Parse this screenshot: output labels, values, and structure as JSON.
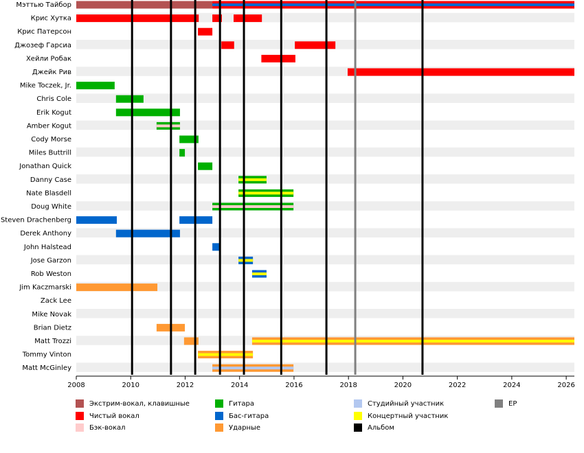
{
  "chart_data": {
    "type": "timeline",
    "xlim": [
      2008,
      2026.3
    ],
    "xticks": [
      2008,
      2010,
      2012,
      2014,
      2016,
      2018,
      2020,
      2022,
      2024,
      2026
    ],
    "series": [
      {
        "name": "Экстрим-вокал, клавишные",
        "color": "#b35252"
      },
      {
        "name": "Чистый вокал",
        "color": "#ff0000"
      },
      {
        "name": "Бэк-вокал",
        "color": "#ffcccc"
      },
      {
        "name": "Гитара",
        "color": "#00b000"
      },
      {
        "name": "Бас-гитара",
        "color": "#0066cc"
      },
      {
        "name": "Ударные",
        "color": "#ff9933"
      },
      {
        "name": "Студийный участник",
        "color": "#b3c8f0"
      },
      {
        "name": "Концертный участник",
        "color": "#ffff00"
      },
      {
        "name": "Альбом",
        "color": "#000000",
        "values": [
          2010.05,
          2011.48,
          2012.37,
          2013.28,
          2014.16,
          2015.53,
          2017.19,
          2020.72
        ]
      },
      {
        "name": "EP",
        "color": "#808080",
        "values": [
          2018.25
        ]
      }
    ],
    "members": [
      {
        "name": "Мэттью Тайбор",
        "bars": [
          {
            "start": 2008,
            "end": 2013.0,
            "role": 0
          },
          {
            "start": 2013.0,
            "end": 2026.3,
            "role": 1,
            "stripe": 4
          }
        ]
      },
      {
        "name": "Крис Хутка",
        "bars": [
          {
            "start": 2008,
            "end": 2012.5,
            "role": 1
          },
          {
            "start": 2013.0,
            "end": 2013.35,
            "role": 1
          },
          {
            "start": 2013.78,
            "end": 2014.82,
            "role": 1
          }
        ]
      },
      {
        "name": "Крис Патерсон",
        "bars": [
          {
            "start": 2012.47,
            "end": 2013.0,
            "role": 1
          }
        ]
      },
      {
        "name": "Джозеф Гарсиа",
        "bars": [
          {
            "start": 2013.33,
            "end": 2013.8,
            "role": 1
          },
          {
            "start": 2016.03,
            "end": 2017.52,
            "role": 1
          }
        ]
      },
      {
        "name": "Хейли Робак",
        "bars": [
          {
            "start": 2014.8,
            "end": 2016.05,
            "role": 1
          }
        ]
      },
      {
        "name": "Джейк Рив",
        "bars": [
          {
            "start": 2017.97,
            "end": 2026.3,
            "role": 1
          }
        ]
      },
      {
        "name": "Mike Toczek, Jr.",
        "bars": [
          {
            "start": 2008,
            "end": 2009.41,
            "role": 3
          }
        ]
      },
      {
        "name": "Chris Cole",
        "bars": [
          {
            "start": 2009.46,
            "end": 2010.47,
            "role": 3
          }
        ]
      },
      {
        "name": "Erik Kogut",
        "bars": [
          {
            "start": 2009.46,
            "end": 2011.81,
            "role": 3
          }
        ]
      },
      {
        "name": "Amber Kogut",
        "bars": [
          {
            "start": 2010.95,
            "end": 2011.81,
            "role": 3,
            "stripe": 2
          }
        ]
      },
      {
        "name": "Cody Morse",
        "bars": [
          {
            "start": 2011.79,
            "end": 2012.49,
            "role": 3
          }
        ]
      },
      {
        "name": "Miles Buttrill",
        "bars": [
          {
            "start": 2011.79,
            "end": 2011.99,
            "role": 3
          }
        ]
      },
      {
        "name": "Jonathan Quick",
        "bars": [
          {
            "start": 2012.47,
            "end": 2013.0,
            "role": 3
          }
        ]
      },
      {
        "name": "Danny Case",
        "bars": [
          {
            "start": 2013.96,
            "end": 2014.99,
            "role": 3,
            "stripe": 7
          }
        ]
      },
      {
        "name": "Nate Blasdell",
        "bars": [
          {
            "start": 2013.96,
            "end": 2015.98,
            "role": 3,
            "stripe": 7
          }
        ]
      },
      {
        "name": "Doug White",
        "bars": [
          {
            "start": 2013.0,
            "end": 2015.98,
            "role": 3,
            "stripe": 2
          }
        ]
      },
      {
        "name": "Steven Drachenberg",
        "bars": [
          {
            "start": 2008,
            "end": 2009.49,
            "role": 4
          },
          {
            "start": 2011.79,
            "end": 2013.0,
            "role": 4
          }
        ]
      },
      {
        "name": "Derek Anthony",
        "bars": [
          {
            "start": 2009.46,
            "end": 2011.81,
            "role": 4
          }
        ]
      },
      {
        "name": "John Halstead",
        "bars": [
          {
            "start": 2013.0,
            "end": 2013.25,
            "role": 4
          }
        ]
      },
      {
        "name": "Jose Garzon",
        "bars": [
          {
            "start": 2013.96,
            "end": 2014.49,
            "role": 4,
            "stripe": 7
          }
        ]
      },
      {
        "name": "Rob Weston",
        "bars": [
          {
            "start": 2014.46,
            "end": 2014.99,
            "role": 4,
            "stripe": 7
          }
        ]
      },
      {
        "name": "Jim Kaczmarski",
        "bars": [
          {
            "start": 2008,
            "end": 2010.98,
            "role": 5
          }
        ]
      },
      {
        "name": "Zack Lee",
        "bars": []
      },
      {
        "name": "Mike Novak",
        "bars": []
      },
      {
        "name": "Brian Dietz",
        "bars": [
          {
            "start": 2010.95,
            "end": 2011.99,
            "role": 5
          }
        ]
      },
      {
        "name": "Matt Trozzi",
        "bars": [
          {
            "start": 2011.96,
            "end": 2012.49,
            "role": 5
          },
          {
            "start": 2014.46,
            "end": 2026.3,
            "role": 5,
            "stripe": 7
          }
        ]
      },
      {
        "name": "Tommy Vinton",
        "bars": [
          {
            "start": 2012.47,
            "end": 2014.49,
            "role": 5,
            "stripe": 7
          }
        ]
      },
      {
        "name": "Matt McGinley",
        "bars": [
          {
            "start": 2013.0,
            "end": 2015.98,
            "role": 5,
            "stripe": 6
          }
        ]
      }
    ]
  }
}
